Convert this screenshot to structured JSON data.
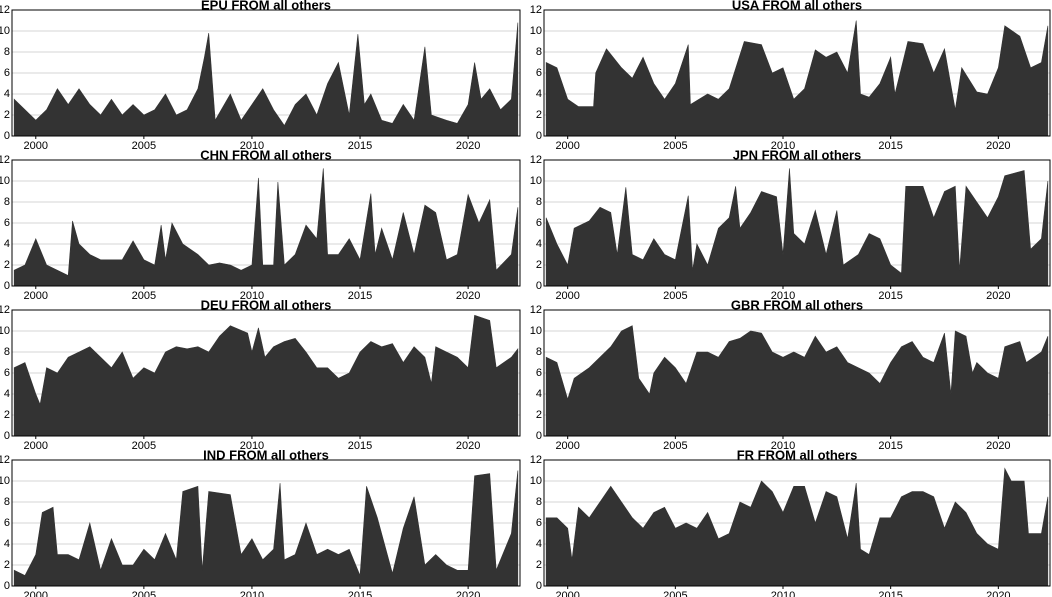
{
  "chart_data": [
    {
      "type": "area",
      "title": "EPU FROM all others",
      "color": "#333333",
      "grid": true,
      "x": [
        1999,
        1999.5,
        2000,
        2000.5,
        2001,
        2001.5,
        2002,
        2002.5,
        2003,
        2003.5,
        2004,
        2004.5,
        2005,
        2005.5,
        2006,
        2006.5,
        2007,
        2007.5,
        2007.8,
        2008,
        2008.3,
        2009,
        2009.5,
        2010,
        2010.5,
        2011,
        2011.5,
        2012,
        2012.5,
        2013,
        2013.5,
        2014,
        2014.5,
        2014.9,
        2015.2,
        2015.5,
        2016,
        2016.5,
        2017,
        2017.5,
        2018,
        2018.3,
        2019,
        2019.5,
        2020,
        2020.3,
        2020.6,
        2021,
        2021.5,
        2022,
        2022.3
      ],
      "values": [
        3.5,
        2.5,
        1.5,
        2.5,
        4.5,
        3,
        4.5,
        3,
        2,
        3.5,
        2,
        3,
        2,
        2.5,
        4,
        2,
        2.5,
        4.5,
        7.5,
        9.8,
        1.5,
        4,
        1.5,
        3,
        4.5,
        2.5,
        1,
        3,
        4,
        2,
        5,
        7,
        2,
        9.7,
        3,
        4,
        1.5,
        1.2,
        3,
        1.5,
        8.5,
        2,
        1.5,
        1.2,
        3,
        7,
        3.5,
        4.5,
        2.5,
        3.5,
        10.8
      ],
      "xlim": [
        1998.9,
        2022.4
      ],
      "ylim": [
        0,
        12
      ],
      "xticks": [
        2000,
        2005,
        2010,
        2015,
        2020
      ],
      "yticks": [
        0,
        2,
        4,
        6,
        8,
        10,
        12
      ]
    },
    {
      "type": "area",
      "title": "USA FROM all others",
      "color": "#333333",
      "grid": true,
      "x": [
        1999,
        1999.5,
        2000,
        2000.5,
        2001.2,
        2001.3,
        2001.8,
        2002.5,
        2003,
        2003.5,
        2004,
        2004.5,
        2005,
        2005.6,
        2005.7,
        2006.5,
        2007,
        2007.5,
        2008.2,
        2009,
        2009.5,
        2010,
        2010.5,
        2011,
        2011.5,
        2012,
        2012.5,
        2013,
        2013.4,
        2013.6,
        2014,
        2014.5,
        2015,
        2015.2,
        2015.8,
        2016.5,
        2017,
        2017.5,
        2018,
        2018.3,
        2019,
        2019.5,
        2020,
        2020.3,
        2021,
        2021.5,
        2022,
        2022.3
      ],
      "values": [
        7,
        6.5,
        3.5,
        2.8,
        2.8,
        6,
        8.3,
        6.5,
        5.5,
        7.5,
        5,
        3.5,
        5,
        8.7,
        3,
        4,
        3.5,
        4.5,
        9,
        8.7,
        6,
        6.5,
        3.5,
        4.5,
        8.2,
        7.5,
        8,
        6,
        11,
        4,
        3.7,
        5,
        7.5,
        4,
        9,
        8.8,
        6,
        8.3,
        2.5,
        6.5,
        4.2,
        4,
        6.5,
        10.5,
        9.5,
        6.5,
        7,
        10.5
      ],
      "xlim": [
        1998.9,
        2022.4
      ],
      "ylim": [
        0,
        12
      ],
      "xticks": [
        2000,
        2005,
        2010,
        2015,
        2020
      ],
      "yticks": [
        0,
        2,
        4,
        6,
        8,
        10,
        12
      ]
    },
    {
      "type": "area",
      "title": "CHN FROM all others",
      "color": "#333333",
      "grid": true,
      "x": [
        1999,
        1999.5,
        2000,
        2000.5,
        2001.5,
        2001.7,
        2002,
        2002.5,
        2003,
        2003.5,
        2004,
        2004.5,
        2005,
        2005.5,
        2005.8,
        2006,
        2006.3,
        2006.8,
        2007.5,
        2008,
        2008.5,
        2009,
        2009.5,
        2010,
        2010.3,
        2010.5,
        2011,
        2011.2,
        2011.5,
        2012,
        2012.5,
        2013,
        2013.3,
        2013.5,
        2014,
        2014.5,
        2015,
        2015.5,
        2015.7,
        2016,
        2016.5,
        2017,
        2017.5,
        2018,
        2018.5,
        2019,
        2019.5,
        2020,
        2020.5,
        2021,
        2021.3,
        2022,
        2022.3
      ],
      "values": [
        1.5,
        2,
        4.5,
        2,
        1,
        6.2,
        4,
        3,
        2.5,
        2.5,
        2.5,
        4.3,
        2.5,
        2,
        5.8,
        2.5,
        6,
        4,
        3,
        2,
        2.2,
        2,
        1.5,
        2,
        10.3,
        2,
        2,
        9.9,
        2,
        3,
        5.8,
        4.5,
        11.2,
        3,
        3,
        4.5,
        2.5,
        8.8,
        3,
        5.5,
        2.5,
        7,
        3,
        7.7,
        7,
        2.5,
        3,
        8.7,
        6,
        8.2,
        1.5,
        3,
        7.5
      ],
      "xlim": [
        1998.9,
        2022.4
      ],
      "ylim": [
        0,
        12
      ],
      "xticks": [
        2000,
        2005,
        2010,
        2015,
        2020
      ],
      "yticks": [
        0,
        2,
        4,
        6,
        8,
        10,
        12
      ]
    },
    {
      "type": "area",
      "title": "JPN FROM all others",
      "color": "#333333",
      "grid": true,
      "x": [
        1999,
        1999.5,
        2000,
        2000.3,
        2001,
        2001.5,
        2002,
        2002.3,
        2002.7,
        2003,
        2003.5,
        2004,
        2004.5,
        2005,
        2005.6,
        2005.8,
        2006,
        2006.5,
        2007,
        2007.5,
        2007.8,
        2008,
        2008.5,
        2009,
        2009.7,
        2010,
        2010.3,
        2010.5,
        2011,
        2011.5,
        2012,
        2012.5,
        2012.8,
        2013.5,
        2014,
        2014.5,
        2015,
        2015.5,
        2015.7,
        2016.5,
        2017,
        2017.5,
        2018,
        2018.2,
        2018.5,
        2019,
        2019.5,
        2020,
        2020.3,
        2021.2,
        2021.5,
        2022,
        2022.3
      ],
      "values": [
        6.5,
        4,
        2,
        5.5,
        6.2,
        7.5,
        7,
        3,
        9.4,
        3,
        2.5,
        4.5,
        3,
        2.5,
        8.6,
        1.5,
        4,
        2,
        5.5,
        6.5,
        9.5,
        5.5,
        7,
        9,
        8.5,
        3,
        11.2,
        5,
        4,
        7.2,
        3,
        7.2,
        2,
        3,
        5,
        4.5,
        2,
        1.2,
        9.5,
        9.5,
        6.5,
        9,
        9.5,
        1.5,
        9.5,
        8,
        6.5,
        8.5,
        10.5,
        11,
        3.5,
        4.5,
        10
      ],
      "xlim": [
        1998.9,
        2022.4
      ],
      "ylim": [
        0,
        12
      ],
      "xticks": [
        2000,
        2005,
        2010,
        2015,
        2020
      ],
      "yticks": [
        0,
        2,
        4,
        6,
        8,
        10,
        12
      ]
    },
    {
      "type": "area",
      "title": "DEU FROM all others",
      "color": "#333333",
      "grid": true,
      "x": [
        1999,
        1999.5,
        2000,
        2000.2,
        2000.5,
        2001,
        2001.5,
        2002,
        2002.5,
        2003,
        2003.5,
        2004,
        2004.5,
        2005,
        2005.5,
        2006,
        2006.5,
        2007,
        2007.5,
        2008,
        2008.5,
        2009,
        2009.8,
        2010,
        2010.3,
        2010.6,
        2011,
        2011.5,
        2012,
        2012.5,
        2013,
        2013.5,
        2014,
        2014.5,
        2015,
        2015.5,
        2016,
        2016.5,
        2017,
        2017.5,
        2018,
        2018.3,
        2018.5,
        2019,
        2019.5,
        2020,
        2020.3,
        2021,
        2021.3,
        2022,
        2022.3
      ],
      "values": [
        6.5,
        7,
        4,
        3,
        6.5,
        6,
        7.5,
        8,
        8.5,
        7.5,
        6.5,
        8,
        5.5,
        6.5,
        6,
        8,
        8.5,
        8.3,
        8.5,
        8,
        9.5,
        10.5,
        9.8,
        8,
        10.3,
        7.5,
        8.5,
        9,
        9.3,
        8,
        6.5,
        6.5,
        5.5,
        6,
        8,
        9,
        8.5,
        8.8,
        7,
        8.5,
        7.5,
        5,
        8.5,
        8,
        7.5,
        6.5,
        11.5,
        11,
        6.5,
        7.5,
        8.3
      ],
      "xlim": [
        1998.9,
        2022.4
      ],
      "ylim": [
        0,
        12
      ],
      "xticks": [
        2000,
        2005,
        2010,
        2015,
        2020
      ],
      "yticks": [
        0,
        2,
        4,
        6,
        8,
        10,
        12
      ]
    },
    {
      "type": "area",
      "title": "GBR FROM all others",
      "color": "#333333",
      "grid": true,
      "x": [
        1999,
        1999.5,
        2000,
        2000.3,
        2001,
        2001.5,
        2002,
        2002.5,
        2003,
        2003.3,
        2003.8,
        2004,
        2004.5,
        2005,
        2005.5,
        2006,
        2006.5,
        2007,
        2007.5,
        2008,
        2008.5,
        2009,
        2009.5,
        2010,
        2010.5,
        2011,
        2011.5,
        2012,
        2012.5,
        2013,
        2013.5,
        2014,
        2014.5,
        2015,
        2015.5,
        2016,
        2016.5,
        2017,
        2017.5,
        2017.8,
        2018,
        2018.5,
        2018.8,
        2019,
        2019.5,
        2020,
        2020.3,
        2021,
        2021.3,
        2022,
        2022.3
      ],
      "values": [
        7.5,
        7,
        3.5,
        5.5,
        6.5,
        7.5,
        8.5,
        10,
        10.5,
        5.5,
        4,
        6,
        7.5,
        6.5,
        5,
        8,
        8,
        7.5,
        9,
        9.3,
        10,
        9.8,
        8,
        7.5,
        8,
        7.5,
        9.5,
        8,
        8.5,
        7,
        6.5,
        6,
        5,
        7,
        8.5,
        9,
        7.5,
        7,
        9.8,
        4,
        10,
        9.5,
        6,
        7,
        6,
        5.5,
        8.5,
        9,
        7,
        8,
        9.5
      ],
      "xlim": [
        1998.9,
        2022.4
      ],
      "ylim": [
        0,
        12
      ],
      "xticks": [
        2000,
        2005,
        2010,
        2015,
        2020
      ],
      "yticks": [
        0,
        2,
        4,
        6,
        8,
        10,
        12
      ]
    },
    {
      "type": "area",
      "title": "IND FROM all others",
      "color": "#333333",
      "grid": true,
      "x": [
        1999,
        1999.5,
        2000,
        2000.3,
        2000.8,
        2001,
        2001.5,
        2002,
        2002.5,
        2003,
        2003.5,
        2004,
        2004.5,
        2005,
        2005.5,
        2006,
        2006.5,
        2006.8,
        2007.5,
        2007.7,
        2008,
        2009,
        2009.5,
        2010,
        2010.5,
        2011,
        2011.3,
        2011.5,
        2012,
        2012.5,
        2013,
        2013.5,
        2014,
        2014.5,
        2015,
        2015.3,
        2015.8,
        2016.5,
        2017,
        2017.5,
        2018,
        2018.5,
        2019,
        2019.5,
        2020,
        2020.3,
        2021,
        2021.3,
        2022,
        2022.3
      ],
      "values": [
        1.5,
        1,
        3,
        7,
        7.5,
        3,
        3,
        2.5,
        6,
        1.5,
        4.5,
        2,
        2,
        3.5,
        2.5,
        5,
        2.5,
        9,
        9.5,
        1.5,
        9,
        8.7,
        3,
        4.5,
        2.5,
        3.5,
        9.8,
        2.5,
        3,
        6,
        3,
        3.5,
        3,
        3.5,
        1,
        9.5,
        6.5,
        1.2,
        5.5,
        8.5,
        2,
        3,
        2,
        1.5,
        1.5,
        10.5,
        10.7,
        1.5,
        5,
        11
      ],
      "xlim": [
        1998.9,
        2022.4
      ],
      "ylim": [
        0,
        12
      ],
      "xticks": [
        2000,
        2005,
        2010,
        2015,
        2020
      ],
      "yticks": [
        0,
        2,
        4,
        6,
        8,
        10,
        12
      ]
    },
    {
      "type": "area",
      "title": "FR FROM all others",
      "color": "#333333",
      "grid": true,
      "x": [
        1999,
        1999.5,
        2000,
        2000.2,
        2000.5,
        2001,
        2001.5,
        2002,
        2002.5,
        2003,
        2003.5,
        2004,
        2004.5,
        2005,
        2005.5,
        2006,
        2006.5,
        2007,
        2007.5,
        2008,
        2008.5,
        2009,
        2009.5,
        2010,
        2010.5,
        2011,
        2011.5,
        2012,
        2012.5,
        2013,
        2013.4,
        2013.6,
        2014,
        2014.5,
        2015,
        2015.5,
        2016,
        2016.5,
        2017,
        2017.5,
        2018,
        2018.5,
        2019,
        2019.5,
        2020,
        2020.3,
        2020.6,
        2021.2,
        2021.4,
        2022,
        2022.3
      ],
      "values": [
        6.5,
        6.5,
        5.5,
        2.5,
        7.5,
        6.5,
        8,
        9.5,
        8,
        6.5,
        5.5,
        7,
        7.5,
        5.5,
        6,
        5.5,
        7,
        4.5,
        5,
        8,
        7.5,
        10,
        9,
        7,
        9.5,
        9.5,
        6,
        9,
        8.5,
        4.5,
        9.8,
        3.5,
        3,
        6.5,
        6.5,
        8.5,
        9,
        9,
        8.5,
        5.5,
        8,
        7,
        5,
        4,
        3.5,
        11.2,
        10,
        10,
        5,
        5,
        8.5
      ],
      "xlim": [
        1998.9,
        2022.4
      ],
      "ylim": [
        0,
        12
      ],
      "xticks": [
        2000,
        2005,
        2010,
        2015,
        2020
      ],
      "yticks": [
        0,
        2,
        4,
        6,
        8,
        10,
        12
      ]
    }
  ]
}
